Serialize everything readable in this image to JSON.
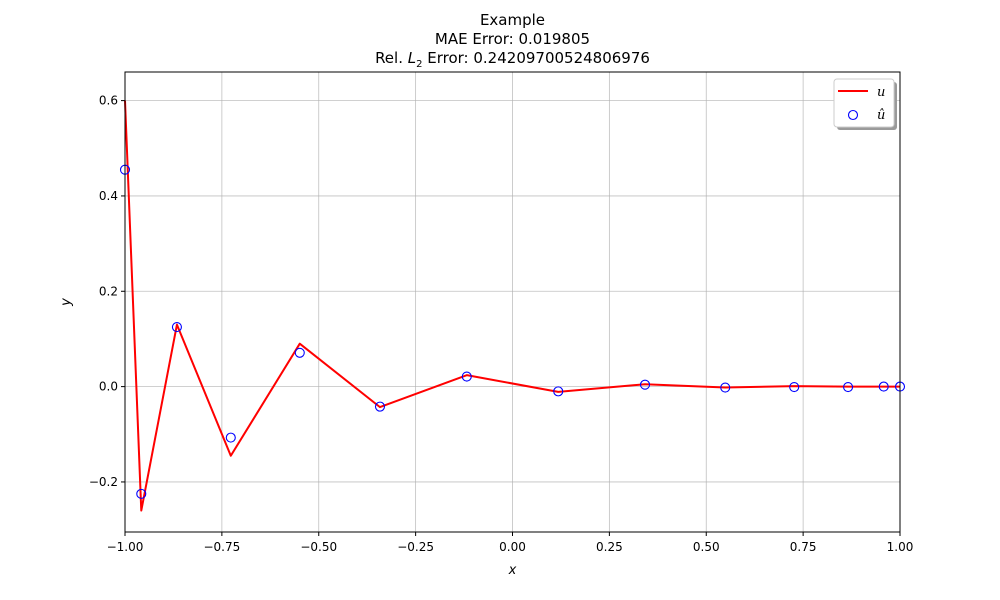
{
  "chart_data": {
    "type": "line",
    "title": "Example",
    "subtitle_mae": "MAE Error: 0.019805",
    "subtitle_l2_prefix": "Rel. ",
    "subtitle_l2_symbol": "L",
    "subtitle_l2_sub": "2",
    "subtitle_l2_suffix": " Error: 0.24209700524806976",
    "xlabel": "x",
    "ylabel": "y",
    "xlim": [
      -1.0,
      1.0
    ],
    "ylim": [
      -0.305,
      0.66
    ],
    "xticks": [
      -1.0,
      -0.75,
      -0.5,
      -0.25,
      0.0,
      0.25,
      0.5,
      0.75,
      1.0
    ],
    "xtick_labels": [
      "−1.00",
      "−0.75",
      "−0.50",
      "−0.25",
      "0.00",
      "0.25",
      "0.50",
      "0.75",
      "1.00"
    ],
    "yticks": [
      -0.2,
      0.0,
      0.2,
      0.4,
      0.6
    ],
    "ytick_labels": [
      "−0.2",
      "0.0",
      "0.2",
      "0.4",
      "0.6"
    ],
    "grid": true,
    "legend_position": "top-right",
    "series": [
      {
        "name": "u",
        "style": "line",
        "color": "#ff0000",
        "x": [
          -1.0,
          -0.958,
          -0.866,
          -0.727,
          -0.549,
          -0.342,
          -0.118,
          0.118,
          0.342,
          0.549,
          0.727,
          0.866,
          0.958,
          1.0
        ],
        "y": [
          0.6,
          -0.26,
          0.13,
          -0.145,
          0.09,
          -0.043,
          0.024,
          -0.011,
          0.005,
          -0.002,
          0.001,
          0.0,
          0.0,
          0.0
        ]
      },
      {
        "name": "û",
        "style": "scatter",
        "color": "#0000ff",
        "x": [
          -1.0,
          -0.958,
          -0.866,
          -0.727,
          -0.549,
          -0.342,
          -0.118,
          0.118,
          0.342,
          0.549,
          0.727,
          0.866,
          0.958,
          1.0
        ],
        "y": [
          0.455,
          -0.225,
          0.125,
          -0.107,
          0.071,
          -0.042,
          0.021,
          -0.01,
          0.004,
          -0.002,
          -0.001,
          -0.001,
          0.0,
          0.0
        ]
      }
    ],
    "colors": {
      "frame": "#000000",
      "grid": "#b0b0b0"
    }
  }
}
